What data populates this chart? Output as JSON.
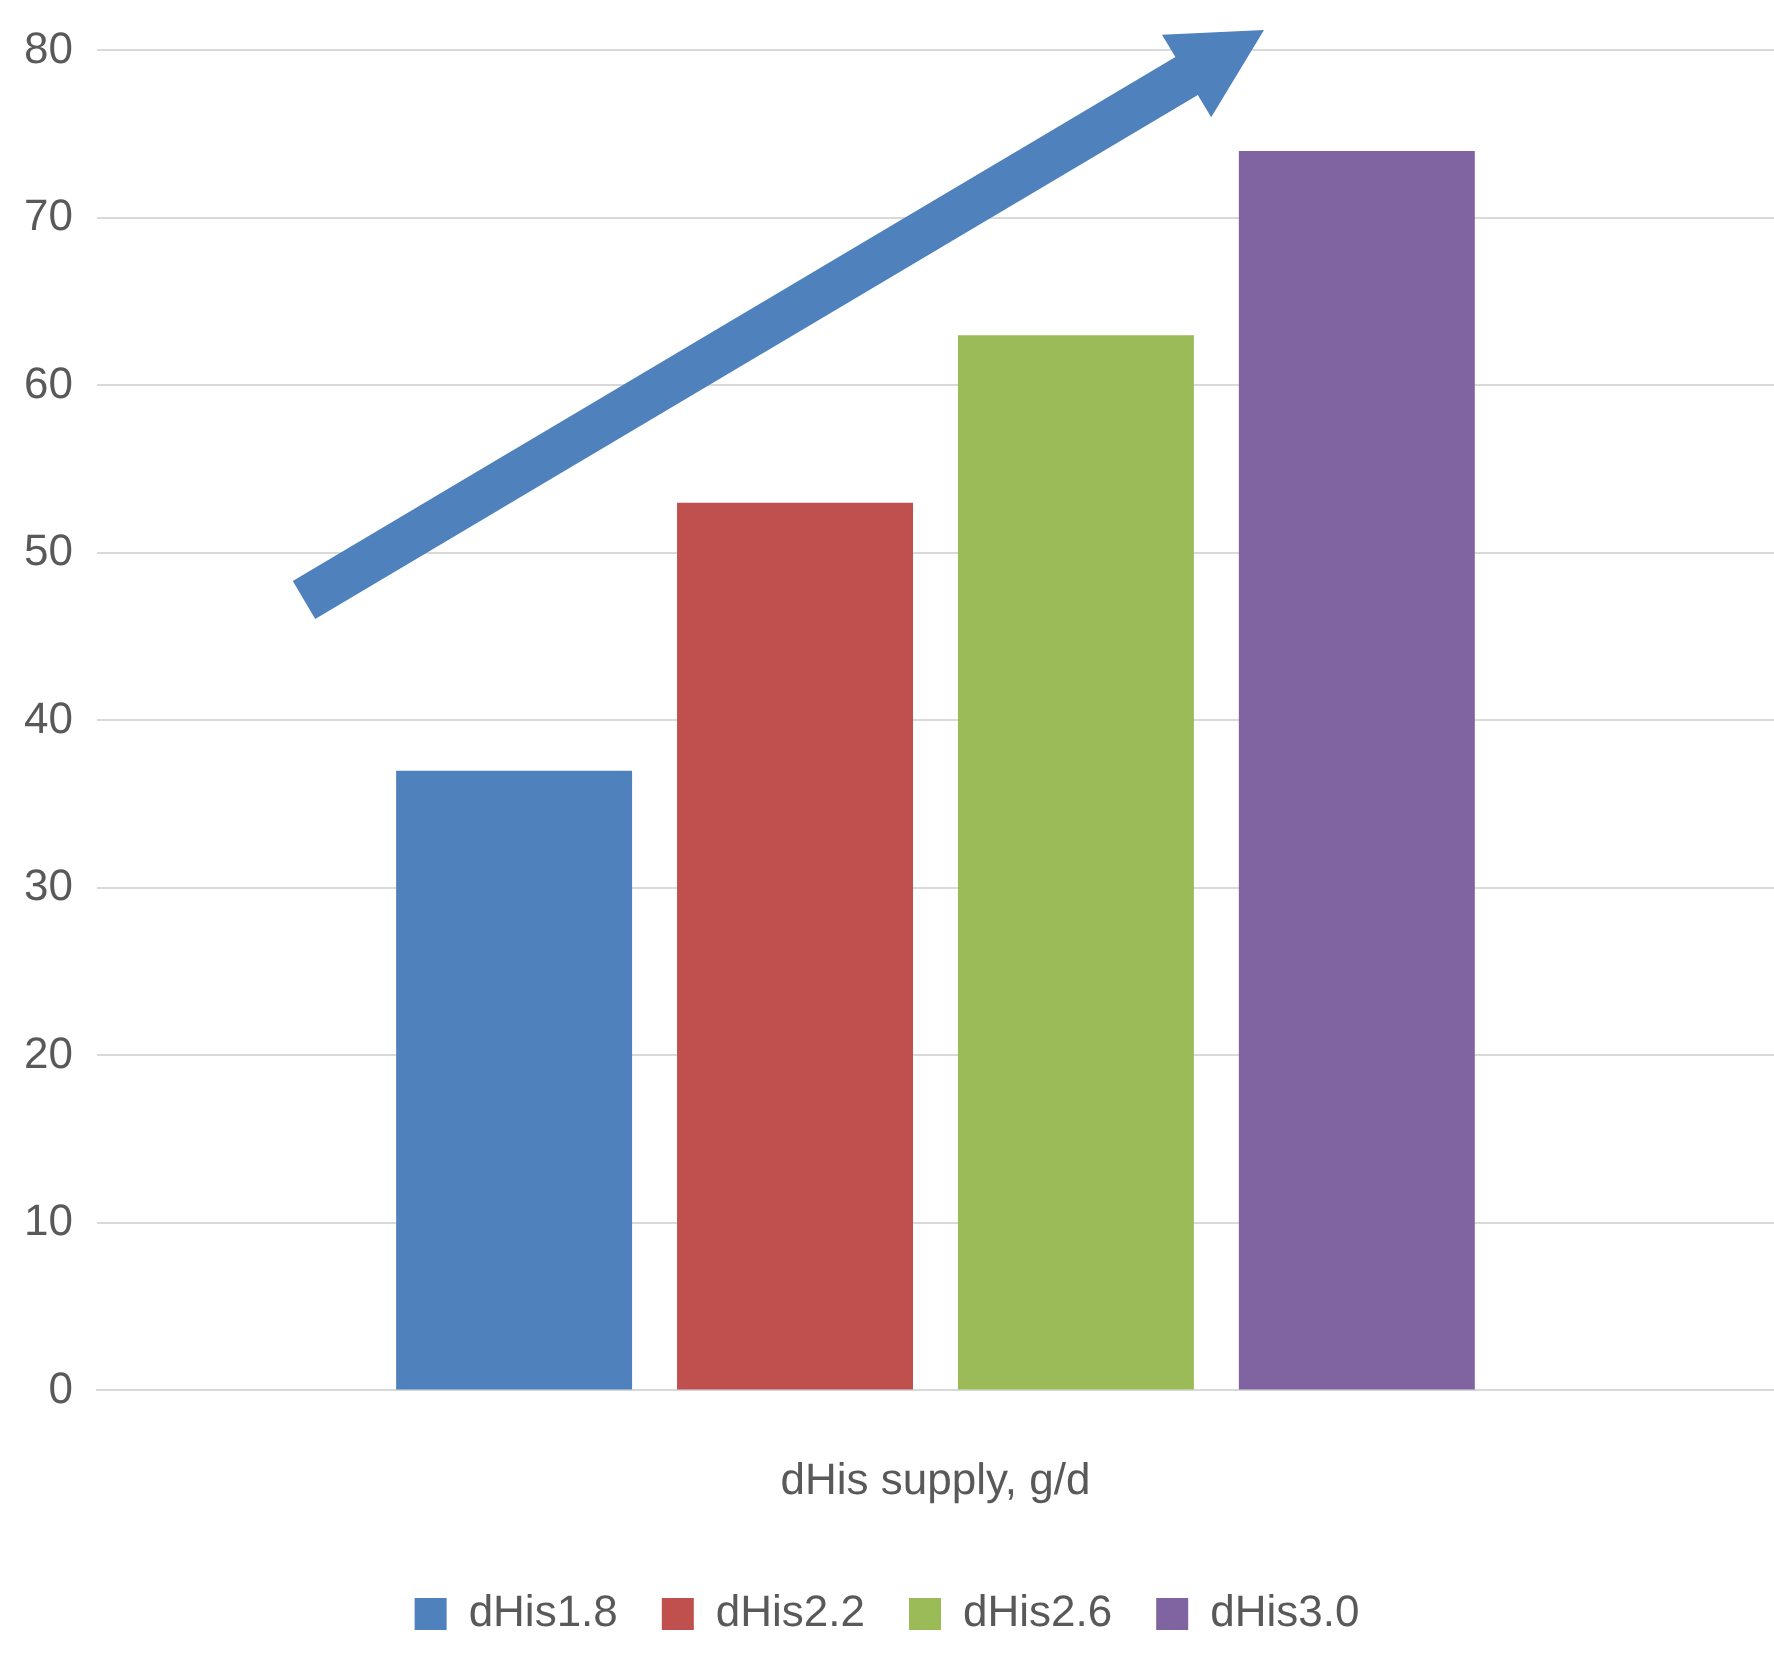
{
  "chart_data": {
    "type": "bar",
    "xlabel": "dHis supply, g/d",
    "categories": [
      null
    ],
    "series": [
      {
        "name": "dHis1.8",
        "color": "#4f81bd",
        "values": [
          37
        ]
      },
      {
        "name": "dHis2.2",
        "color": "#c0504d",
        "values": [
          53
        ]
      },
      {
        "name": "dHis2.6",
        "color": "#9bbb59",
        "values": [
          63
        ]
      },
      {
        "name": "dHis3.0",
        "color": "#8064a2",
        "values": [
          74
        ]
      }
    ],
    "ylim": [
      0,
      80
    ],
    "yticks": [
      0,
      10,
      20,
      30,
      40,
      50,
      60,
      70,
      80
    ],
    "grid": "y",
    "legend": "bottom"
  }
}
